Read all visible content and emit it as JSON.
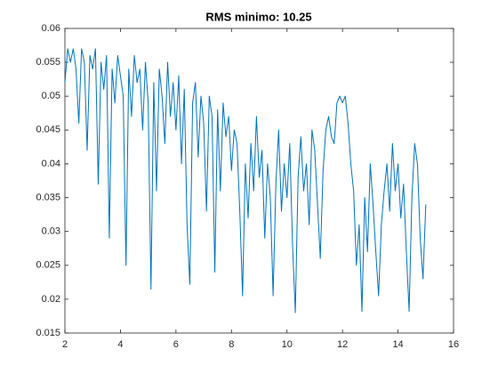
{
  "chart_data": {
    "type": "line",
    "title": "RMS minimo: 10.25",
    "x": [
      2.0,
      2.1,
      2.2,
      2.3,
      2.4,
      2.5,
      2.6,
      2.7,
      2.8,
      2.9,
      3.0,
      3.1,
      3.2,
      3.3,
      3.4,
      3.5,
      3.6,
      3.7,
      3.8,
      3.9,
      4.0,
      4.1,
      4.2,
      4.3,
      4.4,
      4.5,
      4.6,
      4.7,
      4.8,
      4.9,
      5.0,
      5.1,
      5.2,
      5.3,
      5.4,
      5.5,
      5.6,
      5.7,
      5.8,
      5.9,
      6.0,
      6.1,
      6.2,
      6.3,
      6.4,
      6.5,
      6.6,
      6.7,
      6.8,
      6.9,
      7.0,
      7.1,
      7.2,
      7.3,
      7.4,
      7.5,
      7.6,
      7.7,
      7.8,
      7.9,
      8.0,
      8.1,
      8.2,
      8.3,
      8.4,
      8.5,
      8.6,
      8.7,
      8.8,
      8.9,
      9.0,
      9.1,
      9.2,
      9.3,
      9.4,
      9.5,
      9.6,
      9.7,
      9.8,
      9.9,
      10.0,
      10.1,
      10.2,
      10.3,
      10.4,
      10.5,
      10.6,
      10.7,
      10.8,
      10.9,
      11.0,
      11.1,
      11.2,
      11.3,
      11.4,
      11.5,
      11.6,
      11.7,
      11.8,
      11.9,
      12.0,
      12.1,
      12.2,
      12.3,
      12.4,
      12.5,
      12.6,
      12.7,
      12.8,
      12.9,
      13.0,
      13.1,
      13.2,
      13.3,
      13.4,
      13.5,
      13.6,
      13.7,
      13.8,
      13.9,
      14.0,
      14.1,
      14.2,
      14.3,
      14.4,
      14.5,
      14.6,
      14.7,
      14.8,
      14.9,
      15.0
    ],
    "series": [
      {
        "color": "#0072bd",
        "values": [
          0.052,
          0.057,
          0.055,
          0.057,
          0.054,
          0.046,
          0.057,
          0.055,
          0.042,
          0.056,
          0.054,
          0.057,
          0.037,
          0.055,
          0.051,
          0.056,
          0.029,
          0.054,
          0.049,
          0.056,
          0.053,
          0.05,
          0.025,
          0.054,
          0.047,
          0.056,
          0.052,
          0.054,
          0.045,
          0.055,
          0.049,
          0.0215,
          0.052,
          0.036,
          0.054,
          0.05,
          0.043,
          0.055,
          0.047,
          0.052,
          0.045,
          0.053,
          0.04,
          0.051,
          0.031,
          0.0222,
          0.049,
          0.052,
          0.041,
          0.05,
          0.046,
          0.033,
          0.05,
          0.047,
          0.024,
          0.048,
          0.036,
          0.049,
          0.044,
          0.047,
          0.039,
          0.045,
          0.043,
          0.033,
          0.0205,
          0.04,
          0.032,
          0.043,
          0.036,
          0.047,
          0.038,
          0.042,
          0.029,
          0.04,
          0.035,
          0.0205,
          0.037,
          0.045,
          0.033,
          0.04,
          0.035,
          0.043,
          0.028,
          0.018,
          0.038,
          0.044,
          0.036,
          0.04,
          0.031,
          0.045,
          0.042,
          0.034,
          0.026,
          0.039,
          0.045,
          0.047,
          0.044,
          0.043,
          0.049,
          0.05,
          0.049,
          0.05,
          0.046,
          0.04,
          0.036,
          0.025,
          0.031,
          0.0182,
          0.035,
          0.027,
          0.04,
          0.034,
          0.027,
          0.0205,
          0.031,
          0.036,
          0.04,
          0.033,
          0.043,
          0.036,
          0.04,
          0.032,
          0.037,
          0.027,
          0.0182,
          0.035,
          0.043,
          0.04,
          0.029,
          0.023,
          0.034
        ]
      }
    ],
    "xlim": [
      2,
      16
    ],
    "xticks": [
      2,
      4,
      6,
      8,
      10,
      12,
      14,
      16
    ],
    "ylim": [
      0.015,
      0.06
    ],
    "yticks": [
      0.015,
      0.02,
      0.025,
      0.03,
      0.035,
      0.04,
      0.045,
      0.05,
      0.055,
      0.06
    ]
  }
}
